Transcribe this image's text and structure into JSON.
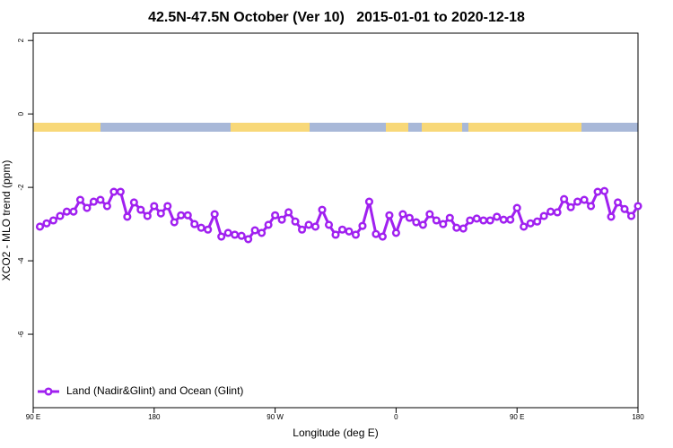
{
  "chart_data": {
    "type": "line",
    "title": "42.5N-47.5N October (Ver 10)   2015-01-01 to 2020-12-18",
    "xlabel": "Longitude (deg E)",
    "ylabel": "XCO2 - MLO trend (ppm)",
    "xlim": [
      90,
      540
    ],
    "ylim": [
      -8,
      2.2
    ],
    "xticks": [
      {
        "value": 90,
        "label": "90 E"
      },
      180,
      {
        "value": 270,
        "label": "90 W"
      },
      {
        "value": 360,
        "label": "0"
      },
      {
        "value": 450,
        "label": "90 E"
      },
      {
        "value": 540,
        "label": "180"
      }
    ],
    "yticks": [
      2,
      0,
      -2,
      -4,
      -6
    ],
    "legend": "bottom-left",
    "x": [
      95,
      100,
      105,
      110,
      115,
      120,
      125,
      130,
      135,
      140,
      145,
      150,
      155,
      160,
      165,
      170,
      175,
      180,
      185,
      190,
      195,
      200,
      205,
      210,
      215,
      220,
      225,
      230,
      235,
      240,
      245,
      250,
      255,
      260,
      265,
      270,
      275,
      280,
      285,
      290,
      295,
      300,
      305,
      310,
      315,
      320,
      325,
      330,
      335,
      340,
      345,
      350,
      355,
      360,
      365,
      370,
      375,
      380,
      385,
      390,
      395,
      400,
      405,
      410,
      415,
      420,
      425,
      430,
      435,
      440,
      445,
      450,
      455,
      460,
      465,
      470,
      475,
      480,
      485,
      490,
      495,
      500,
      505,
      510,
      515,
      520,
      525,
      530,
      535,
      540
    ],
    "series": [
      {
        "name": "Land (Nadir&Glint) and Ocean (Glint)",
        "color": "#a020f0",
        "values": [
          -3.07,
          -2.98,
          -2.9,
          -2.78,
          -2.66,
          -2.66,
          -2.34,
          -2.56,
          -2.39,
          -2.34,
          -2.51,
          -2.12,
          -2.12,
          -2.8,
          -2.41,
          -2.61,
          -2.78,
          -2.51,
          -2.71,
          -2.51,
          -2.95,
          -2.76,
          -2.76,
          -3.0,
          -3.1,
          -3.15,
          -2.73,
          -3.34,
          -3.24,
          -3.29,
          -3.32,
          -3.41,
          -3.17,
          -3.24,
          -3.02,
          -2.76,
          -2.88,
          -2.68,
          -2.93,
          -3.15,
          -3.02,
          -3.07,
          -2.61,
          -3.02,
          -3.29,
          -3.15,
          -3.2,
          -3.29,
          -3.05,
          -2.39,
          -3.27,
          -3.34,
          -2.76,
          -3.24,
          -2.73,
          -2.83,
          -2.95,
          -3.02,
          -2.73,
          -2.9,
          -3.0,
          -2.83,
          -3.1,
          -3.12,
          -2.9,
          -2.85,
          -2.9,
          -2.9,
          -2.8,
          -2.88,
          -2.88,
          -2.56,
          -3.07,
          -2.98,
          -2.93,
          -2.78,
          -2.66,
          -2.68,
          -2.32,
          -2.54,
          -2.39,
          -2.34,
          -2.51,
          -2.12,
          -2.1,
          -2.8,
          -2.41,
          -2.59,
          -2.78,
          -2.51
        ]
      }
    ]
  }
}
